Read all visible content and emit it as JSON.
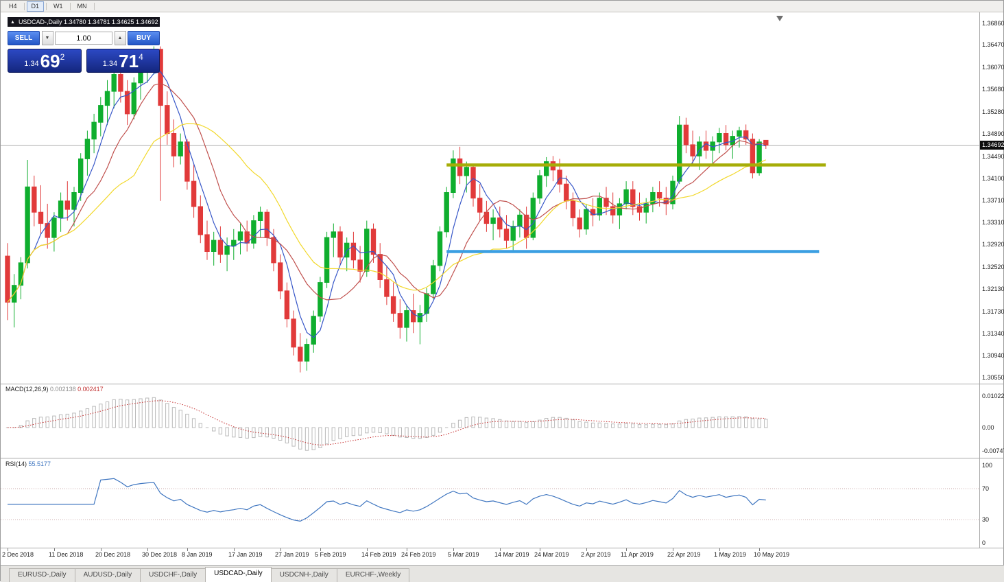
{
  "toolbar": {
    "timeframes": [
      {
        "label": "H4",
        "active": false
      },
      {
        "label": "D1",
        "active": true
      },
      {
        "label": "W1",
        "active": false
      },
      {
        "label": "MN",
        "active": false
      }
    ]
  },
  "trade_panel": {
    "collapse_icon": "▲",
    "header": "USDCAD-,Daily  1.34780 1.34781 1.34625 1.34692",
    "sell_label": "SELL",
    "buy_label": "BUY",
    "volume": "1.00",
    "down_icon": "▼",
    "up_icon": "▲",
    "bid": {
      "prefix": "1.34",
      "big": "69",
      "sup": "2"
    },
    "ask": {
      "prefix": "1.34",
      "big": "71",
      "sup": "4"
    }
  },
  "chart_data": {
    "type": "candlestick",
    "title": "USDCAD-,Daily",
    "ohlc_display": [
      "1.34780",
      "1.34781",
      "1.34625",
      "1.34692"
    ],
    "bid_price": "1.34692",
    "up_color": "#0fae2e",
    "down_color": "#e13a3a",
    "y_axis_labels": [
      "1.36860",
      "1.36470",
      "1.36070",
      "1.35680",
      "1.35280",
      "1.34890",
      "1.34490",
      "1.34100",
      "1.33710",
      "1.33310",
      "1.32920",
      "1.32520",
      "1.32130",
      "1.31730",
      "1.31340",
      "1.30940",
      "1.30550"
    ],
    "x_tick_labels": [
      {
        "bar": 0,
        "text": "2 Dec 2018"
      },
      {
        "bar": 7,
        "text": "11 Dec 2018"
      },
      {
        "bar": 14,
        "text": "20 Dec 2018"
      },
      {
        "bar": 21,
        "text": "30 Dec 2018"
      },
      {
        "bar": 27,
        "text": "8 Jan 2019"
      },
      {
        "bar": 34,
        "text": "17 Jan 2019"
      },
      {
        "bar": 41,
        "text": "27 Jan 2019"
      },
      {
        "bar": 47,
        "text": "5 Feb 2019"
      },
      {
        "bar": 54,
        "text": "14 Feb 2019"
      },
      {
        "bar": 60,
        "text": "24 Feb 2019"
      },
      {
        "bar": 67,
        "text": "5 Mar 2019"
      },
      {
        "bar": 74,
        "text": "14 Mar 2019"
      },
      {
        "bar": 80,
        "text": "24 Mar 2019"
      },
      {
        "bar": 87,
        "text": "2 Apr 2019"
      },
      {
        "bar": 93,
        "text": "11 Apr 2019"
      },
      {
        "bar": 100,
        "text": "22 Apr 2019"
      },
      {
        "bar": 107,
        "text": "1 May 2019"
      },
      {
        "bar": 113,
        "text": "10 May 2019"
      }
    ],
    "moving_averages": [
      {
        "period": 5,
        "color": "#3656c8"
      },
      {
        "period": 10,
        "color": "#c0504d"
      },
      {
        "period": 20,
        "color": "#f2d82a"
      }
    ],
    "objects": [
      {
        "name": "resistance-line",
        "color": "#a6ad08",
        "price": 1.3434,
        "bar_start": 66,
        "bar_end": 123,
        "width": 4.5
      },
      {
        "name": "support-line",
        "color": "#3b9fe2",
        "price": 1.328,
        "bar_start": 66,
        "bar_end": 122,
        "width": 4.5
      }
    ],
    "indicators": [
      {
        "name": "MACD",
        "label": "MACD(12,26,9)",
        "values_text": [
          "0.002138",
          "0.002417"
        ],
        "fast": 12,
        "slow": 26,
        "signal": 9,
        "axis_labels": [
          "0.01022",
          "0.00",
          "-0.00747"
        ],
        "hist_color": "#b9b9b9",
        "signal_color": "#c42b2b"
      },
      {
        "name": "RSI",
        "label": "RSI(14)",
        "value_text": "55.5177",
        "period": 14,
        "axis_labels": [
          "100",
          "70",
          "30",
          "0"
        ],
        "levels": [
          70,
          30
        ],
        "color": "#3f76c0"
      }
    ],
    "candles": [
      [
        1.3272,
        1.3295,
        1.3158,
        1.319
      ],
      [
        1.319,
        1.324,
        1.3145,
        1.322
      ],
      [
        1.322,
        1.327,
        1.3195,
        1.326
      ],
      [
        1.326,
        1.3443,
        1.325,
        1.3395
      ],
      [
        1.3395,
        1.3415,
        1.3325,
        1.335
      ],
      [
        1.335,
        1.3398,
        1.331,
        1.333
      ],
      [
        1.333,
        1.3365,
        1.3285,
        1.3305
      ],
      [
        1.3305,
        1.335,
        1.328,
        1.334
      ],
      [
        1.334,
        1.3385,
        1.3315,
        1.337
      ],
      [
        1.337,
        1.3405,
        1.3335,
        1.3355
      ],
      [
        1.3355,
        1.3395,
        1.3325,
        1.3385
      ],
      [
        1.3385,
        1.3455,
        1.337,
        1.3445
      ],
      [
        1.3445,
        1.3495,
        1.3415,
        1.348
      ],
      [
        1.348,
        1.3525,
        1.3455,
        1.351
      ],
      [
        1.351,
        1.3555,
        1.3485,
        1.354
      ],
      [
        1.354,
        1.3585,
        1.3505,
        1.3565
      ],
      [
        1.3565,
        1.361,
        1.3535,
        1.3595
      ],
      [
        1.3595,
        1.3615,
        1.3545,
        1.3565
      ],
      [
        1.3565,
        1.3585,
        1.3505,
        1.3525
      ],
      [
        1.3525,
        1.359,
        1.3515,
        1.358
      ],
      [
        1.358,
        1.362,
        1.355,
        1.361
      ],
      [
        1.361,
        1.364,
        1.358,
        1.363
      ],
      [
        1.363,
        1.3645,
        1.3595,
        1.364
      ],
      [
        1.364,
        1.3645,
        1.337,
        1.354
      ],
      [
        1.354,
        1.3565,
        1.347,
        1.349
      ],
      [
        1.349,
        1.3515,
        1.343,
        1.345
      ],
      [
        1.345,
        1.349,
        1.3435,
        1.3475
      ],
      [
        1.3475,
        1.348,
        1.339,
        1.3405
      ],
      [
        1.3405,
        1.3435,
        1.334,
        1.336
      ],
      [
        1.336,
        1.338,
        1.3295,
        1.331
      ],
      [
        1.331,
        1.3335,
        1.3265,
        1.328
      ],
      [
        1.328,
        1.3315,
        1.3255,
        1.33
      ],
      [
        1.33,
        1.3325,
        1.326,
        1.3275
      ],
      [
        1.3275,
        1.3305,
        1.3245,
        1.329
      ],
      [
        1.329,
        1.332,
        1.3265,
        1.33
      ],
      [
        1.33,
        1.333,
        1.3275,
        1.3315
      ],
      [
        1.3315,
        1.3335,
        1.328,
        1.3295
      ],
      [
        1.3295,
        1.3345,
        1.3285,
        1.3335
      ],
      [
        1.3335,
        1.336,
        1.3305,
        1.335
      ],
      [
        1.335,
        1.3355,
        1.329,
        1.3305
      ],
      [
        1.3305,
        1.332,
        1.3245,
        1.326
      ],
      [
        1.326,
        1.3275,
        1.3195,
        1.321
      ],
      [
        1.321,
        1.3225,
        1.3145,
        1.316
      ],
      [
        1.316,
        1.3175,
        1.3095,
        1.311
      ],
      [
        1.311,
        1.3135,
        1.3065,
        1.3085
      ],
      [
        1.3085,
        1.3125,
        1.3068,
        1.3115
      ],
      [
        1.3115,
        1.3175,
        1.31,
        1.3165
      ],
      [
        1.3165,
        1.3235,
        1.3155,
        1.3225
      ],
      [
        1.3225,
        1.3315,
        1.3215,
        1.3305
      ],
      [
        1.3305,
        1.333,
        1.327,
        1.3315
      ],
      [
        1.3315,
        1.3325,
        1.3255,
        1.327
      ],
      [
        1.327,
        1.3305,
        1.3245,
        1.3295
      ],
      [
        1.3295,
        1.3315,
        1.325,
        1.3265
      ],
      [
        1.3265,
        1.329,
        1.3225,
        1.3245
      ],
      [
        1.3245,
        1.3335,
        1.3235,
        1.332
      ],
      [
        1.332,
        1.333,
        1.326,
        1.3275
      ],
      [
        1.3275,
        1.3295,
        1.3215,
        1.323
      ],
      [
        1.323,
        1.3255,
        1.3185,
        1.32
      ],
      [
        1.32,
        1.3225,
        1.3155,
        1.317
      ],
      [
        1.317,
        1.3195,
        1.3125,
        1.3145
      ],
      [
        1.3145,
        1.3185,
        1.312,
        1.3175
      ],
      [
        1.3175,
        1.3205,
        1.3135,
        1.3155
      ],
      [
        1.3155,
        1.3185,
        1.3115,
        1.317
      ],
      [
        1.317,
        1.3215,
        1.3155,
        1.3205
      ],
      [
        1.3205,
        1.3265,
        1.3195,
        1.3255
      ],
      [
        1.3255,
        1.3325,
        1.3245,
        1.3315
      ],
      [
        1.3315,
        1.3395,
        1.3305,
        1.3385
      ],
      [
        1.3385,
        1.346,
        1.3375,
        1.3445
      ],
      [
        1.3445,
        1.34665,
        1.34,
        1.3415
      ],
      [
        1.3415,
        1.344,
        1.3385,
        1.343
      ],
      [
        1.343,
        1.3435,
        1.336,
        1.3375
      ],
      [
        1.3375,
        1.34,
        1.3335,
        1.335
      ],
      [
        1.335,
        1.337,
        1.3315,
        1.333
      ],
      [
        1.333,
        1.3355,
        1.33,
        1.334
      ],
      [
        1.334,
        1.336,
        1.3305,
        1.332
      ],
      [
        1.332,
        1.3345,
        1.3285,
        1.33
      ],
      [
        1.33,
        1.3335,
        1.328,
        1.3325
      ],
      [
        1.3325,
        1.3355,
        1.3305,
        1.3345
      ],
      [
        1.3345,
        1.336,
        1.3285,
        1.3305
      ],
      [
        1.3305,
        1.3385,
        1.33,
        1.3375
      ],
      [
        1.3375,
        1.3425,
        1.3365,
        1.3415
      ],
      [
        1.3415,
        1.3448,
        1.3395,
        1.344
      ],
      [
        1.344,
        1.345,
        1.3405,
        1.3425
      ],
      [
        1.3425,
        1.3445,
        1.3385,
        1.34
      ],
      [
        1.34,
        1.3415,
        1.3355,
        1.337
      ],
      [
        1.337,
        1.3385,
        1.3325,
        1.334
      ],
      [
        1.334,
        1.3355,
        1.3305,
        1.332
      ],
      [
        1.332,
        1.3365,
        1.331,
        1.3355
      ],
      [
        1.3355,
        1.3375,
        1.3325,
        1.3345
      ],
      [
        1.3345,
        1.3385,
        1.3335,
        1.3375
      ],
      [
        1.3375,
        1.3395,
        1.3345,
        1.336
      ],
      [
        1.336,
        1.3385,
        1.333,
        1.3345
      ],
      [
        1.3345,
        1.3375,
        1.332,
        1.3365
      ],
      [
        1.3365,
        1.3405,
        1.3355,
        1.339
      ],
      [
        1.339,
        1.3405,
        1.3345,
        1.336
      ],
      [
        1.336,
        1.3385,
        1.3335,
        1.335
      ],
      [
        1.335,
        1.3375,
        1.333,
        1.3365
      ],
      [
        1.3365,
        1.3395,
        1.335,
        1.3385
      ],
      [
        1.3385,
        1.3405,
        1.336,
        1.3375
      ],
      [
        1.3375,
        1.3395,
        1.3345,
        1.3365
      ],
      [
        1.3365,
        1.3415,
        1.3355,
        1.3405
      ],
      [
        1.3405,
        1.3521,
        1.34,
        1.3505
      ],
      [
        1.3505,
        1.3518,
        1.3455,
        1.347
      ],
      [
        1.347,
        1.3495,
        1.3435,
        1.345
      ],
      [
        1.345,
        1.3485,
        1.3425,
        1.3475
      ],
      [
        1.3475,
        1.3495,
        1.3445,
        1.346
      ],
      [
        1.346,
        1.3485,
        1.3435,
        1.3475
      ],
      [
        1.3475,
        1.35,
        1.3455,
        1.349
      ],
      [
        1.349,
        1.3505,
        1.346,
        1.347
      ],
      [
        1.347,
        1.3495,
        1.3445,
        1.3485
      ],
      [
        1.3485,
        1.3502,
        1.3465,
        1.3495
      ],
      [
        1.3495,
        1.3506,
        1.347,
        1.348
      ],
      [
        1.348,
        1.349,
        1.341,
        1.342
      ],
      [
        1.342,
        1.348,
        1.3415,
        1.3475
      ],
      [
        1.3478,
        1.34781,
        1.34625,
        1.34692
      ]
    ]
  },
  "tabs": [
    {
      "label": "EURUSD-,Daily",
      "active": false
    },
    {
      "label": "AUDUSD-,Daily",
      "active": false
    },
    {
      "label": "USDCHF-,Daily",
      "active": false
    },
    {
      "label": "USDCAD-,Daily",
      "active": true
    },
    {
      "label": "USDCNH-,Daily",
      "active": false
    },
    {
      "label": "EURCHF-,Weekly",
      "active": false
    }
  ]
}
